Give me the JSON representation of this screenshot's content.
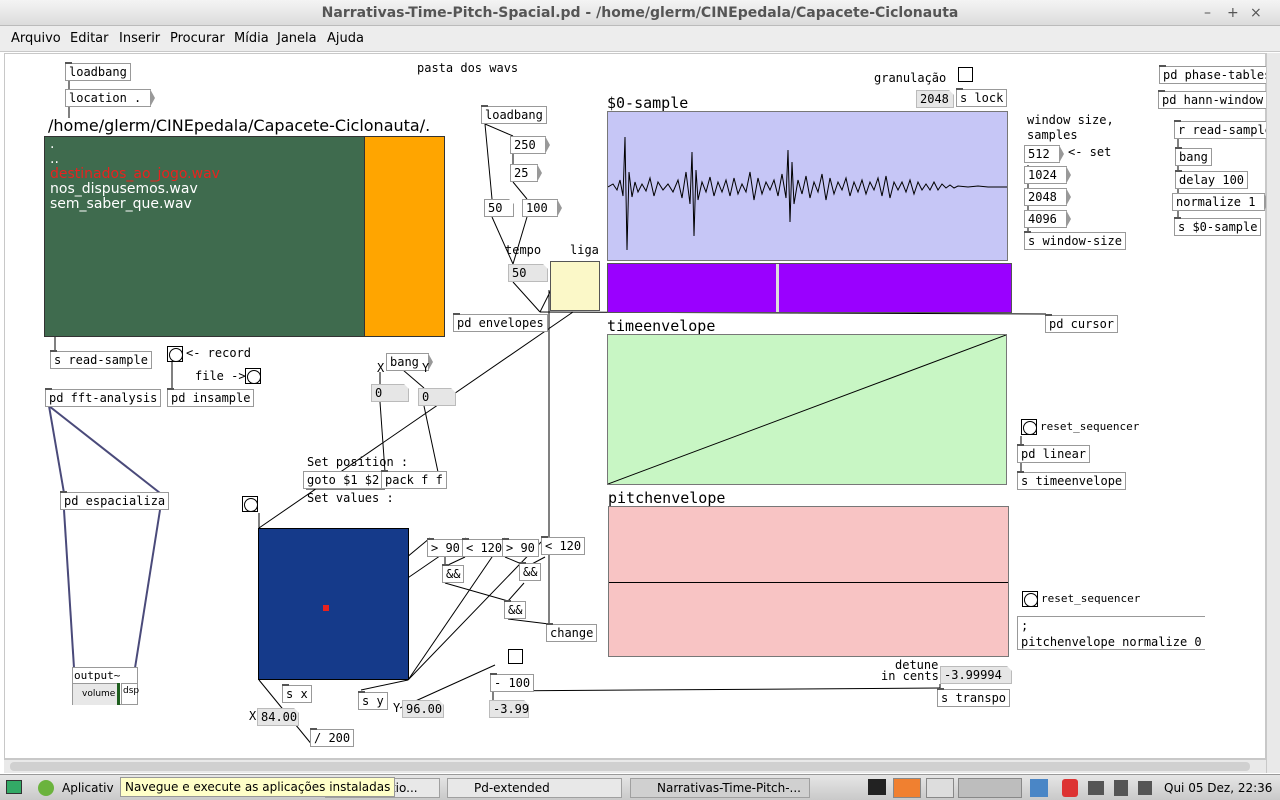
{
  "window": {
    "title": "Narrativas-Time-Pitch-Spacial.pd  - /home/glerm/CINEpedala/Capacete-Ciclonauta",
    "minimize_glyph": "–",
    "maximize_glyph": "+",
    "close_glyph": "×"
  },
  "menu": [
    "Arquivo",
    "Editar",
    "Inserir",
    "Procurar",
    "Mídia",
    "Janela",
    "Ajuda"
  ],
  "patch": {
    "comment_pasta": "pasta dos wavs",
    "obj_loadbang1": "loadbang",
    "msg_location": "location .",
    "filebrowser_path": "/home/glerm/CINEpedala/Capacete-Ciclonauta/.",
    "file_list": [
      ".",
      "..",
      "destinados_ao_jogo.wav",
      "nos_dispusemos.wav",
      "sem_saber_que.wav"
    ],
    "obj_s_read_sample": "s read-sample",
    "label_record": "<- record",
    "label_file": "file ->",
    "obj_pd_insample": "pd insample",
    "obj_pd_fft": "pd fft-analysis",
    "obj_pd_espacializa": "pd espacializa",
    "output_label": "output~",
    "output_volume": "volume",
    "output_dsp": "dsp",
    "obj_loadbang2": "loadbang",
    "msg_250": "250",
    "msg_25": "25",
    "num_50a": "50",
    "msg_100": "100",
    "label_tempo": "tempo",
    "label_liga": "liga",
    "num_50b": "50",
    "obj_pd_envelopes": "pd envelopes",
    "label_x": "X",
    "label_y": "Y",
    "msg_bang": "bang",
    "num_0a": "0",
    "num_0b": "0",
    "comment_setpos": "Set position :",
    "msg_goto": "goto $1 $2",
    "obj_pack": "pack f f",
    "comment_setvalues": "Set values :",
    "obj_gt90a": "> 90",
    "obj_lt120a": "< 120",
    "obj_gt90b": "> 90",
    "obj_lt120b": "< 120",
    "obj_and1": "&&",
    "obj_and2": "&&",
    "obj_and3": "&&",
    "obj_change": "change",
    "obj_s_x": "s x",
    "obj_s_y": "s y",
    "label_X2": "X",
    "label_Y2": "Y",
    "num_x_val": "84.00",
    "num_y_val": "96.00",
    "obj_div200": "/ 200",
    "obj_minus100": "- 100",
    "num_neg399": "-3.99",
    "label_detune": "detune",
    "label_incents": "in cents",
    "num_detune": "-3.99994",
    "obj_s_transpo": "s transpo",
    "array_sample": "$0-sample",
    "label_granulacao": "granulação",
    "num_2048": "2048",
    "obj_s_lock": "s lock",
    "comment_window": "window size,",
    "comment_samples": "samples",
    "msg_512": "512",
    "label_set": "<- set",
    "msg_1024": "1024",
    "msg_2048": "2048",
    "msg_4096": "4096",
    "obj_s_windowsize": "s window-size",
    "obj_pd_cursor": "pd cursor",
    "array_time": "timeenvelope",
    "label_reset1": "reset_sequencer",
    "obj_pd_linear": "pd linear",
    "obj_s_timeenvelope": "s timeenvelope",
    "array_pitch": "pitchenvelope",
    "label_reset2": "reset_sequencer",
    "msg_semicolon": ";",
    "msg_pitchnorm": "pitchenvelope normalize 0",
    "obj_pd_phase": "pd phase-tables",
    "obj_pd_hann": "pd hann-window",
    "obj_r_readsample": "r read-sample",
    "obj_bang": "bang",
    "obj_delay": "delay 100",
    "msg_normalize": "normalize 1",
    "obj_s_sample": "s $0-sample"
  },
  "taskbar": {
    "apps_label": "Aplicativ",
    "tooltip": "Navegue e execute as aplicações instaladas",
    "task_connection": "ectio...",
    "task_pd": "Pd-extended",
    "task_patch": "Narrativas-Time-Pitch-...",
    "clock": "Qui 05 Dez, 22:36"
  },
  "colors": {
    "filebrowser_bg": "#3f6b4e",
    "filebrowser_scroll": "#ffa500",
    "file_highlight": "#e8221e",
    "sample_array_bg": "#c6c6f6",
    "cursor_bar": "#9a00ff",
    "time_array_bg": "#c8f6c4",
    "pitch_array_bg": "#f8c4c4",
    "grid_bg": "#153a8a",
    "toggle_liga": "#fbf8c8"
  }
}
